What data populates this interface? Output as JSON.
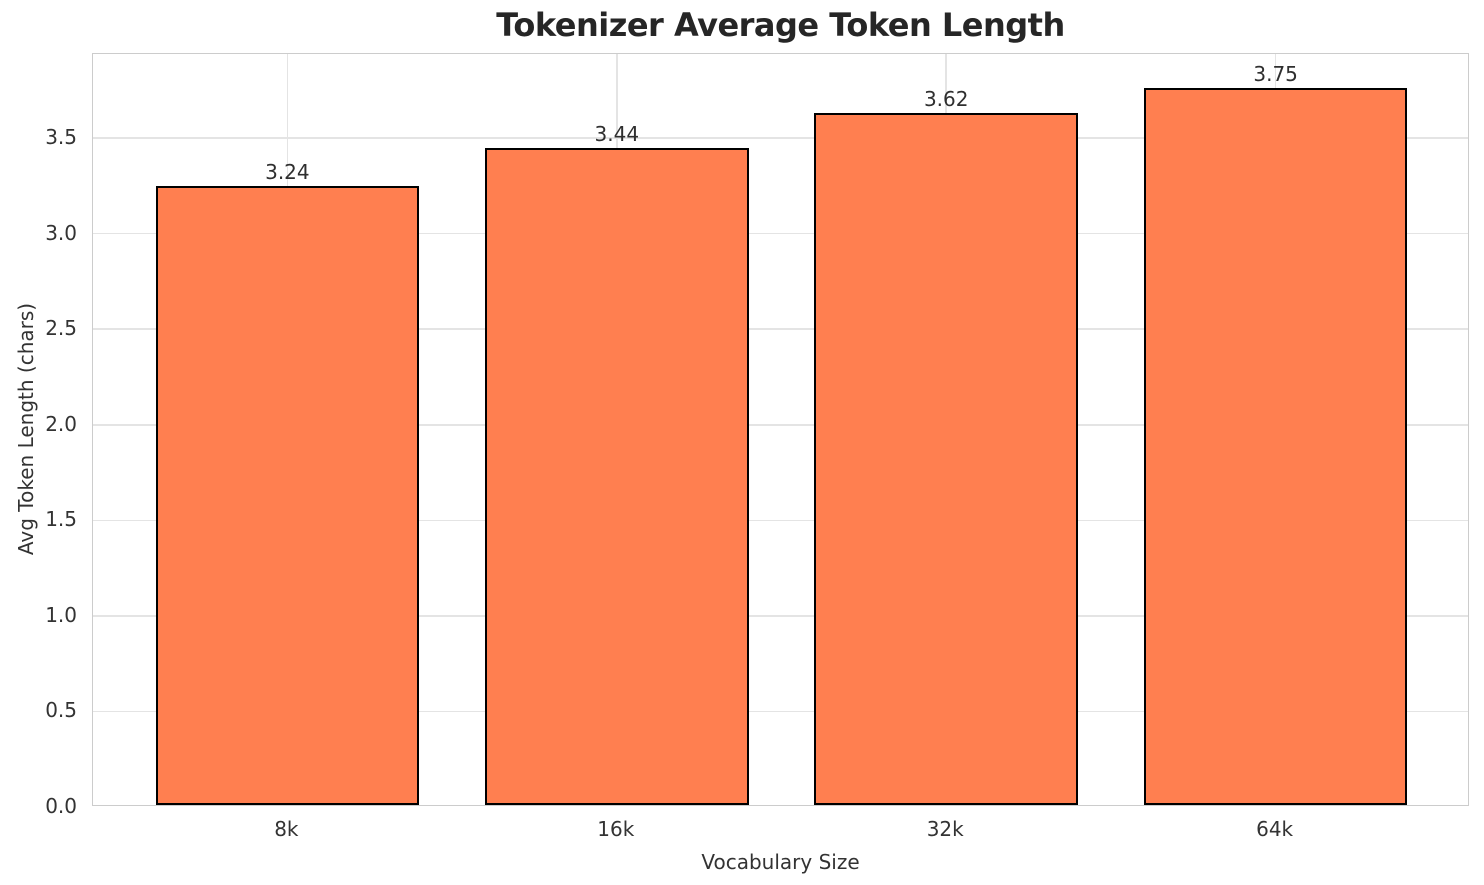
{
  "chart_data": {
    "type": "bar",
    "title": "Tokenizer Average Token Length",
    "xlabel": "Vocabulary Size",
    "ylabel": "Avg Token Length (chars)",
    "categories": [
      "8k",
      "16k",
      "32k",
      "64k"
    ],
    "values": [
      3.24,
      3.44,
      3.62,
      3.75
    ],
    "value_labels": [
      "3.24",
      "3.44",
      "3.62",
      "3.75"
    ],
    "ytick_values": [
      0.0,
      0.5,
      1.0,
      1.5,
      2.0,
      2.5,
      3.0,
      3.5
    ],
    "ytick_labels": [
      "0.0",
      "0.5",
      "1.0",
      "1.5",
      "2.0",
      "2.5",
      "3.0",
      "3.5"
    ],
    "ylim": [
      0,
      3.94
    ],
    "grid": "both",
    "legend": "none",
    "bar_color": "#FF7F50",
    "bar_edge_color": "#000000",
    "grid_color": "#e4e4e4",
    "spine_color": "#cccccc",
    "text_color": "#333333",
    "title_color": "#262626",
    "background_color": "#ffffff"
  }
}
